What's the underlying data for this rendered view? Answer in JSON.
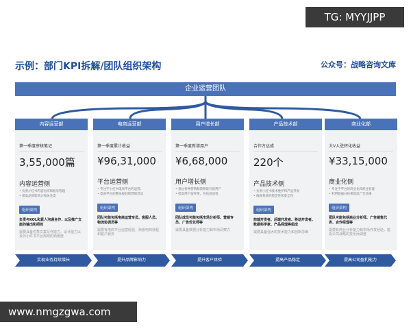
{
  "watermarks": {
    "top": "TG: MYYJJPP",
    "bottom": "www.nmgzgwa.com"
  },
  "header": {
    "title": "示例：部门KPI拆解/团队组织架构",
    "public_account": "公众号：战略咨询文库"
  },
  "org": {
    "root": "企业运营团队"
  },
  "accent": "#4a72b8",
  "departments": [
    {
      "name": "内容运营部",
      "kpi_label": "第一季度审核笔记",
      "kpi_value": "3,55,000篇",
      "side": "内容运营侧",
      "bullets": [
        "• 负责小红书内容创作和账号管理",
        "• 提高品牌影响力和关注度"
      ],
      "tag": "组织架构",
      "desc": "负责与KOL和素人沟通合作，以及推广文案的输出和把控",
      "req": "需要具备优秀文案写作能力、设计能力以及对小红书平台规则的熟悉度",
      "goal": "实现业务持续增长"
    },
    {
      "name": "电商运营部",
      "kpi_label": "第一季度累计收益",
      "kpi_value": "¥96,31,000",
      "side": "平台运营侧",
      "bullets": [
        "• 专注于小红书电商平台的运营、",
        "• 电商平台的整体规划和营销活动"
      ],
      "tag": "组织架构",
      "desc": "团队可能包括电商运营专员、客服人员、物流协调员等",
      "req": "需要有电商平台运营经验，熟悉电商流程和客户服务",
      "goal": "提升品牌影响力"
    },
    {
      "name": "用户增长部",
      "kpi_label": "第一季度新增用户",
      "kpi_value": "¥6,68,000",
      "side": "用户增长侧",
      "bullets": [
        "• 通过各种营销和策略吸引新用户",
        "• 提高用户留存率、包括投放等"
      ],
      "tag": "组织架构",
      "desc": "团队成员可能包括市场分析师、营销专员、广告优化师等",
      "req": "需要具备数据分析能力和市场洞察力",
      "goal": "提升客户体验"
    },
    {
      "name": "产品技术部",
      "kpi_label": "合作方达成",
      "kpi_value": "220个",
      "side": "产品技术侧",
      "bullets": [
        "• 负责小红书技术维护和产品开发",
        "• 确保系统的稳定性和安全性"
      ],
      "tag": "组织架构",
      "desc": "前端开发者、后端开发者、移动开发者、数据科学家、产品经理等组成",
      "req": "需要具备强大的技术能力和创新思维",
      "goal": "提高产品稳定"
    },
    {
      "name": "商业化部",
      "kpi_label": "大V入驻转化收益",
      "kpi_value": "¥33,15,000",
      "side": "商业化侧",
      "bullets": [
        "• 专注于平台的商业化和商业智能",
        "• 利用数据分析来提高广告效果"
      ],
      "tag": "组织架构",
      "desc": "团队可能包括商业分析师、广告销售代表、合作经理等",
      "req": "需要有商业分析能力和市场开发经验，能看公司战略的变化而调整",
      "goal": "提高公司盈利能力"
    }
  ]
}
